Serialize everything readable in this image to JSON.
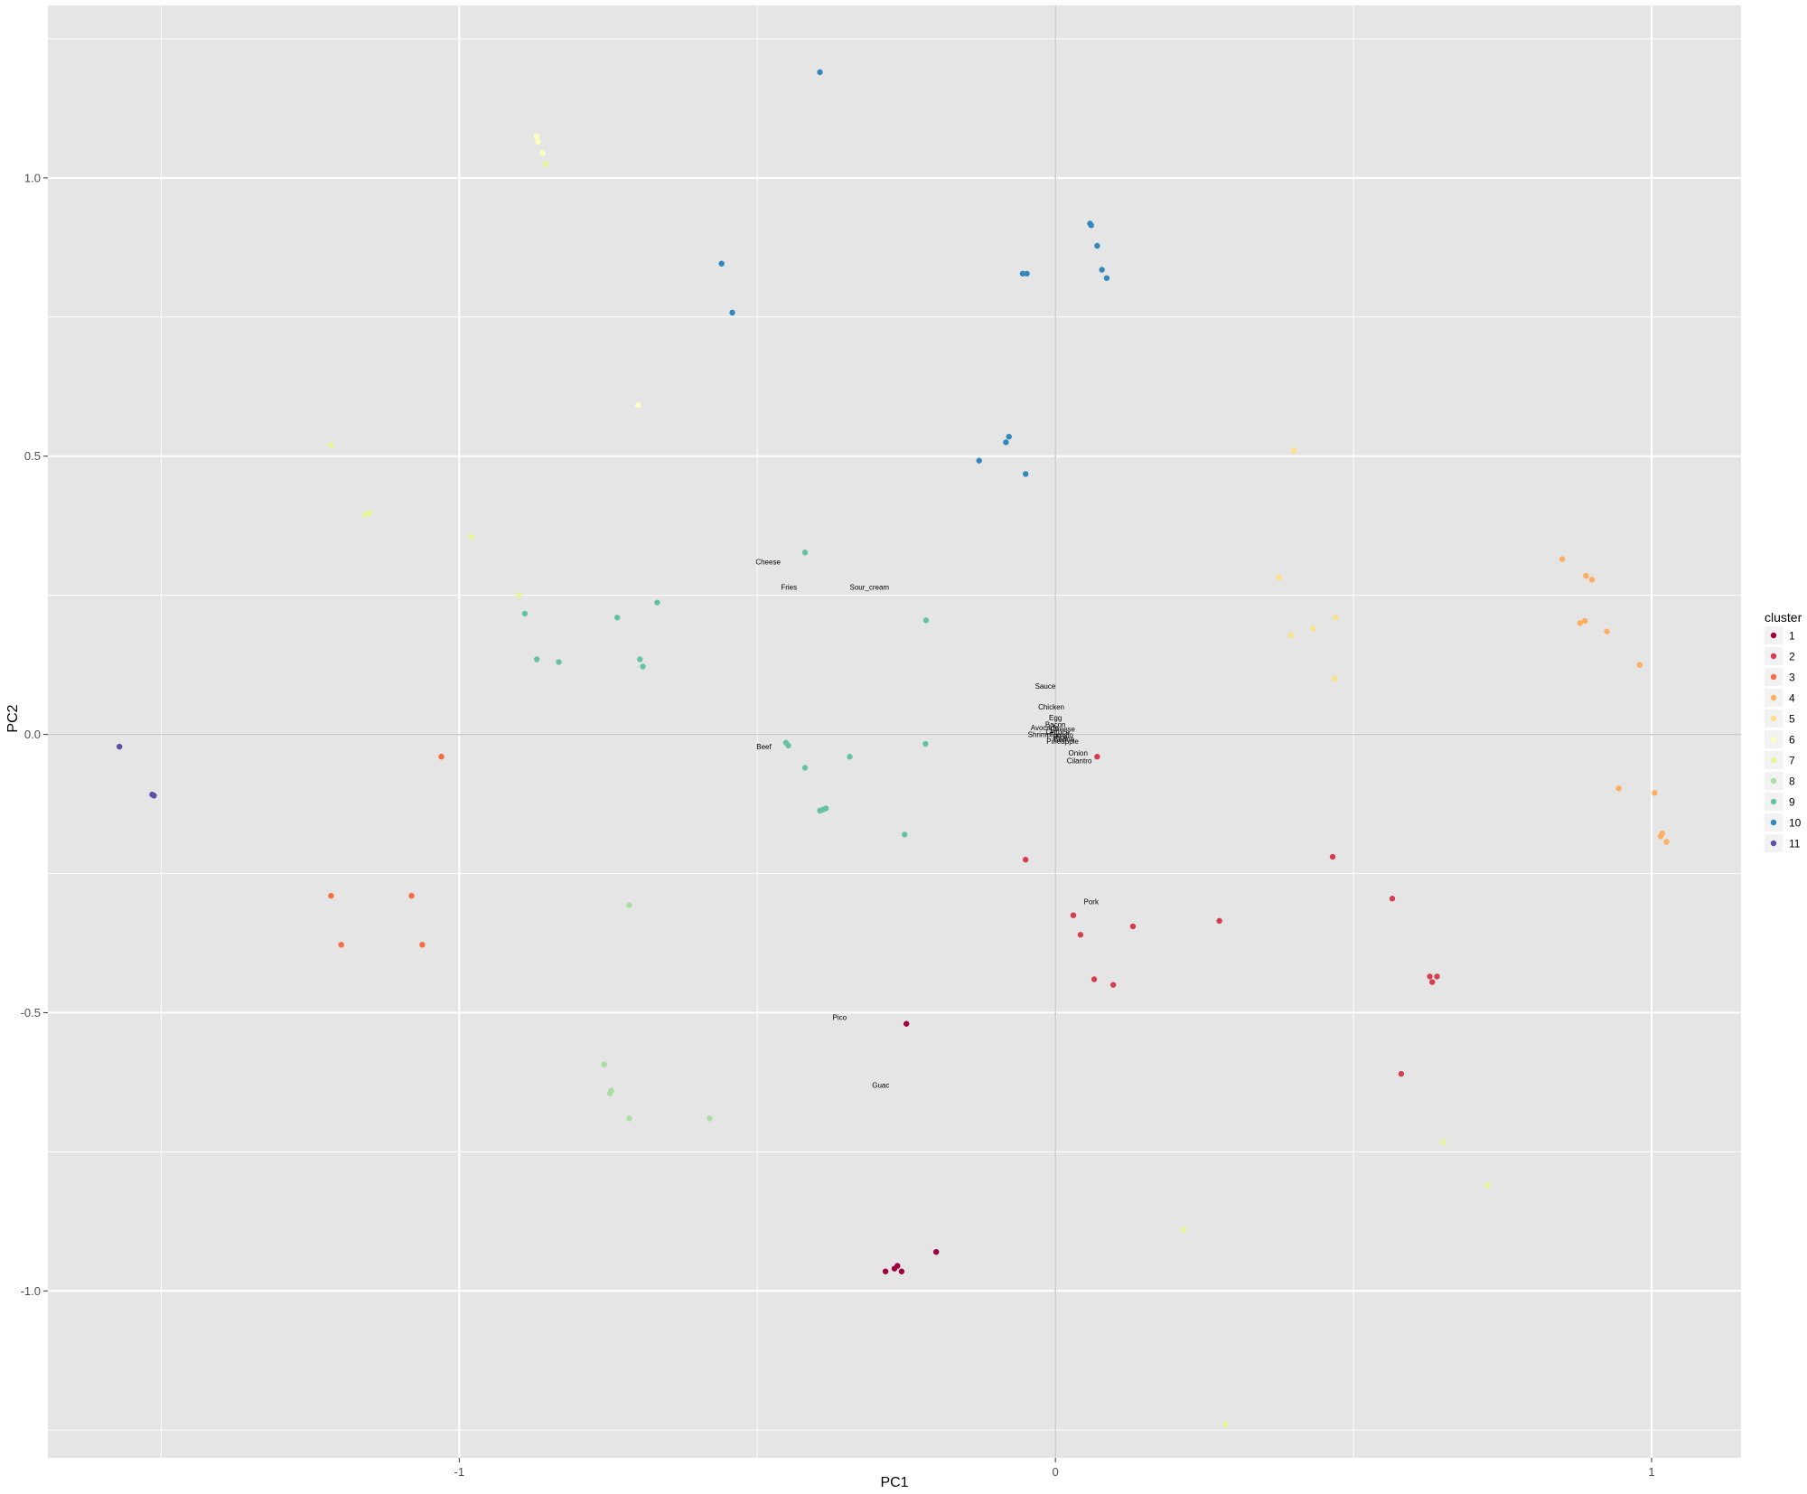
{
  "chart_data": {
    "type": "scatter",
    "title": "",
    "xlabel": "PC1",
    "ylabel": "PC2",
    "xlim": [
      -1.69,
      1.15
    ],
    "ylim": [
      -1.3,
      1.31
    ],
    "x_ticks": [
      {
        "value": -1,
        "label": "-1"
      },
      {
        "value": 0,
        "label": "0"
      },
      {
        "value": 1,
        "label": "1"
      }
    ],
    "y_ticks": [
      {
        "value": 1.0,
        "label": "1.0"
      },
      {
        "value": 0.5,
        "label": "0.5"
      },
      {
        "value": 0.0,
        "label": "0.0"
      },
      {
        "value": -0.5,
        "label": "-0.5"
      },
      {
        "value": -1.0,
        "label": "-1.0"
      }
    ],
    "grid": true,
    "background": "#e5e5e5",
    "zero_lines": true,
    "legend": {
      "title": "cluster",
      "placement": "right",
      "entries": [
        {
          "label": "1",
          "color": "#9e0142"
        },
        {
          "label": "2",
          "color": "#d53e4f"
        },
        {
          "label": "3",
          "color": "#f46d43"
        },
        {
          "label": "4",
          "color": "#fdae61"
        },
        {
          "label": "5",
          "color": "#fee08b"
        },
        {
          "label": "6",
          "color": "#ffffbf"
        },
        {
          "label": "7",
          "color": "#e6f598"
        },
        {
          "label": "8",
          "color": "#abdda4"
        },
        {
          "label": "9",
          "color": "#66c2a5"
        },
        {
          "label": "10",
          "color": "#3288bd"
        },
        {
          "label": "11",
          "color": "#5e4fa2"
        }
      ]
    },
    "series": [
      {
        "name": "1",
        "color": "#9e0142",
        "points": [
          {
            "x": -0.25,
            "y": -0.52
          },
          {
            "x": -0.2,
            "y": -0.93
          },
          {
            "x": -0.265,
            "y": -0.955
          },
          {
            "x": -0.27,
            "y": -0.96
          },
          {
            "x": -0.258,
            "y": -0.965
          },
          {
            "x": -0.285,
            "y": -0.965
          }
        ]
      },
      {
        "name": "2",
        "color": "#d53e4f",
        "points": [
          {
            "x": 0.07,
            "y": -0.04
          },
          {
            "x": -0.05,
            "y": -0.225
          },
          {
            "x": 0.03,
            "y": -0.325
          },
          {
            "x": 0.042,
            "y": -0.36
          },
          {
            "x": 0.13,
            "y": -0.345
          },
          {
            "x": 0.065,
            "y": -0.44
          },
          {
            "x": 0.097,
            "y": -0.45
          },
          {
            "x": 0.275,
            "y": -0.335
          },
          {
            "x": 0.465,
            "y": -0.22
          },
          {
            "x": 0.565,
            "y": -0.295
          },
          {
            "x": 0.628,
            "y": -0.435
          },
          {
            "x": 0.64,
            "y": -0.435
          },
          {
            "x": 0.632,
            "y": -0.445
          },
          {
            "x": 0.58,
            "y": -0.61
          }
        ]
      },
      {
        "name": "3",
        "color": "#f46d43",
        "points": [
          {
            "x": -1.03,
            "y": -0.04
          },
          {
            "x": -1.215,
            "y": -0.29
          },
          {
            "x": -1.08,
            "y": -0.29
          },
          {
            "x": -1.198,
            "y": -0.378
          },
          {
            "x": -1.062,
            "y": -0.378
          }
        ]
      },
      {
        "name": "4",
        "color": "#fdae61",
        "points": [
          {
            "x": 0.85,
            "y": 0.315
          },
          {
            "x": 0.89,
            "y": 0.285
          },
          {
            "x": 0.9,
            "y": 0.278
          },
          {
            "x": 0.88,
            "y": 0.2
          },
          {
            "x": 0.888,
            "y": 0.204
          },
          {
            "x": 0.925,
            "y": 0.185
          },
          {
            "x": 0.98,
            "y": 0.125
          },
          {
            "x": 0.945,
            "y": -0.097
          },
          {
            "x": 1.005,
            "y": -0.105
          },
          {
            "x": 1.015,
            "y": -0.183
          },
          {
            "x": 1.018,
            "y": -0.178
          },
          {
            "x": 1.025,
            "y": -0.193
          }
        ]
      },
      {
        "name": "5",
        "color": "#fee08b",
        "points": [
          {
            "x": 0.4,
            "y": 0.51
          },
          {
            "x": 0.375,
            "y": 0.282
          },
          {
            "x": 0.47,
            "y": 0.21
          },
          {
            "x": 0.432,
            "y": 0.19
          },
          {
            "x": 0.395,
            "y": 0.178
          },
          {
            "x": 0.468,
            "y": 0.1
          }
        ]
      },
      {
        "name": "6",
        "color": "#ffffbf",
        "points": [
          {
            "x": -0.86,
            "y": 1.045
          },
          {
            "x": -0.87,
            "y": 1.075
          },
          {
            "x": -0.868,
            "y": 1.065
          },
          {
            "x": -0.7,
            "y": 0.592
          }
        ]
      },
      {
        "name": "7",
        "color": "#e6f598",
        "points": [
          {
            "x": -0.855,
            "y": 1.025
          },
          {
            "x": -1.215,
            "y": 0.52
          },
          {
            "x": -1.15,
            "y": 0.398
          },
          {
            "x": -1.158,
            "y": 0.395
          },
          {
            "x": -0.98,
            "y": 0.355
          },
          {
            "x": -0.9,
            "y": 0.25
          },
          {
            "x": 0.65,
            "y": -0.733
          },
          {
            "x": 0.725,
            "y": -0.81
          },
          {
            "x": 0.215,
            "y": -0.89
          },
          {
            "x": 0.285,
            "y": -1.24
          }
        ]
      },
      {
        "name": "8",
        "color": "#abdda4",
        "points": [
          {
            "x": -0.715,
            "y": -0.307
          },
          {
            "x": -0.757,
            "y": -0.593
          },
          {
            "x": -0.745,
            "y": -0.64
          },
          {
            "x": -0.747,
            "y": -0.645
          },
          {
            "x": -0.715,
            "y": -0.69
          },
          {
            "x": -0.58,
            "y": -0.69
          }
        ]
      },
      {
        "name": "9",
        "color": "#66c2a5",
        "points": [
          {
            "x": -0.42,
            "y": 0.327
          },
          {
            "x": -0.89,
            "y": 0.217
          },
          {
            "x": -0.735,
            "y": 0.21
          },
          {
            "x": -0.668,
            "y": 0.237
          },
          {
            "x": -0.217,
            "y": 0.205
          },
          {
            "x": -0.87,
            "y": 0.135
          },
          {
            "x": -0.833,
            "y": 0.13
          },
          {
            "x": -0.697,
            "y": 0.135
          },
          {
            "x": -0.692,
            "y": 0.122
          },
          {
            "x": -0.452,
            "y": -0.015
          },
          {
            "x": -0.448,
            "y": -0.02
          },
          {
            "x": -0.345,
            "y": -0.04
          },
          {
            "x": -0.218,
            "y": -0.017
          },
          {
            "x": -0.42,
            "y": -0.06
          },
          {
            "x": -0.395,
            "y": -0.137
          },
          {
            "x": -0.385,
            "y": -0.133
          },
          {
            "x": -0.39,
            "y": -0.135
          },
          {
            "x": -0.253,
            "y": -0.18
          }
        ]
      },
      {
        "name": "10",
        "color": "#3288bd",
        "points": [
          {
            "x": -0.395,
            "y": 1.19
          },
          {
            "x": 0.058,
            "y": 0.918
          },
          {
            "x": 0.06,
            "y": 0.915
          },
          {
            "x": 0.07,
            "y": 0.878
          },
          {
            "x": -0.56,
            "y": 0.846
          },
          {
            "x": 0.078,
            "y": 0.835
          },
          {
            "x": 0.086,
            "y": 0.82
          },
          {
            "x": -0.055,
            "y": 0.828
          },
          {
            "x": -0.048,
            "y": 0.828
          },
          {
            "x": -0.542,
            "y": 0.758
          },
          {
            "x": -0.078,
            "y": 0.535
          },
          {
            "x": -0.083,
            "y": 0.525
          },
          {
            "x": -0.128,
            "y": 0.492
          },
          {
            "x": -0.05,
            "y": 0.468
          }
        ]
      },
      {
        "name": "11",
        "color": "#5e4fa2",
        "points": [
          {
            "x": -1.57,
            "y": -0.022
          },
          {
            "x": -1.515,
            "y": -0.108
          },
          {
            "x": -1.512,
            "y": -0.11
          }
        ]
      }
    ],
    "annotations": [
      {
        "text": "Cheese",
        "x": -0.482,
        "y": 0.31
      },
      {
        "text": "Fries",
        "x": -0.447,
        "y": 0.265
      },
      {
        "text": "Sour_cream",
        "x": -0.312,
        "y": 0.265
      },
      {
        "text": "Sauce",
        "x": -0.017,
        "y": 0.087
      },
      {
        "text": "Chicken",
        "x": -0.007,
        "y": 0.05
      },
      {
        "text": "Egg",
        "x": 0.0,
        "y": 0.03
      },
      {
        "text": "Bacon",
        "x": 0.0,
        "y": 0.018
      },
      {
        "text": "Avocado",
        "x": -0.018,
        "y": 0.012
      },
      {
        "text": "Cheese",
        "x": 0.012,
        "y": 0.01
      },
      {
        "text": "Lettuce",
        "x": 0.004,
        "y": 0.004
      },
      {
        "text": "Tomato",
        "x": 0.01,
        "y": -0.001
      },
      {
        "text": "Shrimp",
        "x": -0.027,
        "y": 0.0
      },
      {
        "text": "Rice",
        "x": 0.008,
        "y": -0.005
      },
      {
        "text": "Beans",
        "x": 0.014,
        "y": -0.008
      },
      {
        "text": "Pineapple",
        "x": 0.012,
        "y": -0.012
      },
      {
        "text": "Onion",
        "x": 0.038,
        "y": -0.033
      },
      {
        "text": "Cilantro",
        "x": 0.04,
        "y": -0.047
      },
      {
        "text": "Beef",
        "x": -0.489,
        "y": -0.022
      },
      {
        "text": "Pork",
        "x": 0.06,
        "y": -0.3
      },
      {
        "text": "Pico",
        "x": -0.362,
        "y": -0.508
      },
      {
        "text": "Guac",
        "x": -0.293,
        "y": -0.63
      }
    ]
  }
}
